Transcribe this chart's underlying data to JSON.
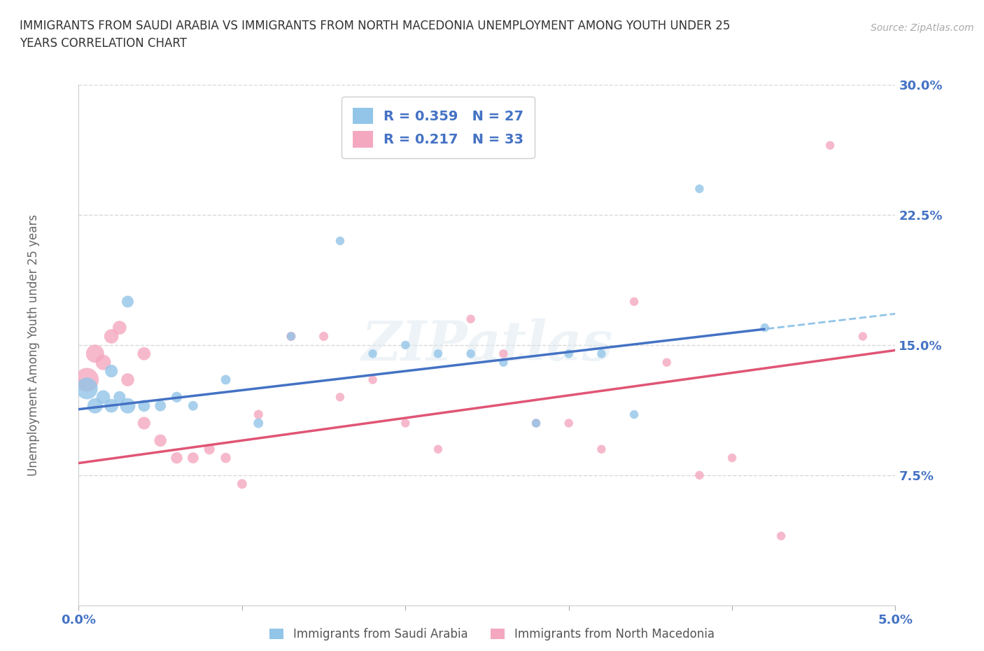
{
  "title": "IMMIGRANTS FROM SAUDI ARABIA VS IMMIGRANTS FROM NORTH MACEDONIA UNEMPLOYMENT AMONG YOUTH UNDER 25\nYEARS CORRELATION CHART",
  "source": "Source: ZipAtlas.com",
  "xlabel_blue": "Immigrants from Saudi Arabia",
  "xlabel_pink": "Immigrants from North Macedonia",
  "ylabel": "Unemployment Among Youth under 25 years",
  "R_blue": 0.359,
  "N_blue": 27,
  "R_pink": 0.217,
  "N_pink": 33,
  "blue_color": "#92c5e8",
  "pink_color": "#f4a8c0",
  "trendline_blue": "#4472c4",
  "trendline_pink": "#e05575",
  "trendline_blue_dashed_color": "#92c5e8",
  "xlim": [
    0.0,
    0.05
  ],
  "ylim": [
    0.0,
    0.3
  ],
  "xticks": [
    0.0,
    0.01,
    0.02,
    0.03,
    0.04,
    0.05
  ],
  "xtick_labels": [
    "0.0%",
    "",
    "",
    "",
    "",
    "5.0%"
  ],
  "ytick_values": [
    0.075,
    0.15,
    0.225,
    0.3
  ],
  "ytick_labels": [
    "7.5%",
    "15.0%",
    "22.5%",
    "30.0%"
  ],
  "blue_x": [
    0.0005,
    0.001,
    0.0015,
    0.002,
    0.002,
    0.0025,
    0.003,
    0.003,
    0.004,
    0.005,
    0.006,
    0.007,
    0.009,
    0.011,
    0.013,
    0.016,
    0.018,
    0.02,
    0.022,
    0.024,
    0.026,
    0.028,
    0.03,
    0.032,
    0.034,
    0.038,
    0.042
  ],
  "blue_y": [
    0.125,
    0.115,
    0.12,
    0.115,
    0.135,
    0.12,
    0.115,
    0.175,
    0.115,
    0.115,
    0.12,
    0.115,
    0.13,
    0.105,
    0.155,
    0.21,
    0.145,
    0.15,
    0.145,
    0.145,
    0.14,
    0.105,
    0.145,
    0.145,
    0.11,
    0.24,
    0.16
  ],
  "blue_size": [
    500,
    250,
    200,
    200,
    170,
    150,
    250,
    150,
    150,
    130,
    120,
    100,
    100,
    100,
    80,
    80,
    80,
    80,
    80,
    80,
    80,
    80,
    80,
    80,
    80,
    80,
    80
  ],
  "pink_x": [
    0.0005,
    0.001,
    0.0015,
    0.002,
    0.0025,
    0.003,
    0.004,
    0.004,
    0.005,
    0.006,
    0.007,
    0.008,
    0.009,
    0.01,
    0.011,
    0.013,
    0.015,
    0.016,
    0.018,
    0.02,
    0.022,
    0.024,
    0.026,
    0.028,
    0.03,
    0.032,
    0.034,
    0.036,
    0.038,
    0.04,
    0.043,
    0.046,
    0.048
  ],
  "pink_y": [
    0.13,
    0.145,
    0.14,
    0.155,
    0.16,
    0.13,
    0.145,
    0.105,
    0.095,
    0.085,
    0.085,
    0.09,
    0.085,
    0.07,
    0.11,
    0.155,
    0.155,
    0.12,
    0.13,
    0.105,
    0.09,
    0.165,
    0.145,
    0.105,
    0.105,
    0.09,
    0.175,
    0.14,
    0.075,
    0.085,
    0.04,
    0.265,
    0.155
  ],
  "pink_size": [
    600,
    350,
    250,
    220,
    200,
    180,
    180,
    170,
    160,
    140,
    130,
    120,
    110,
    100,
    90,
    90,
    90,
    80,
    80,
    80,
    80,
    80,
    80,
    80,
    80,
    80,
    80,
    80,
    80,
    80,
    80,
    80,
    80
  ],
  "watermark": "ZIPatlas",
  "background_color": "#ffffff",
  "grid_color": "#d0d0d0",
  "trendline_blue_intercept": 0.113,
  "trendline_blue_slope": 1.1,
  "trendline_pink_intercept": 0.082,
  "trendline_pink_slope": 1.3,
  "trendline_solid_end": 0.042
}
